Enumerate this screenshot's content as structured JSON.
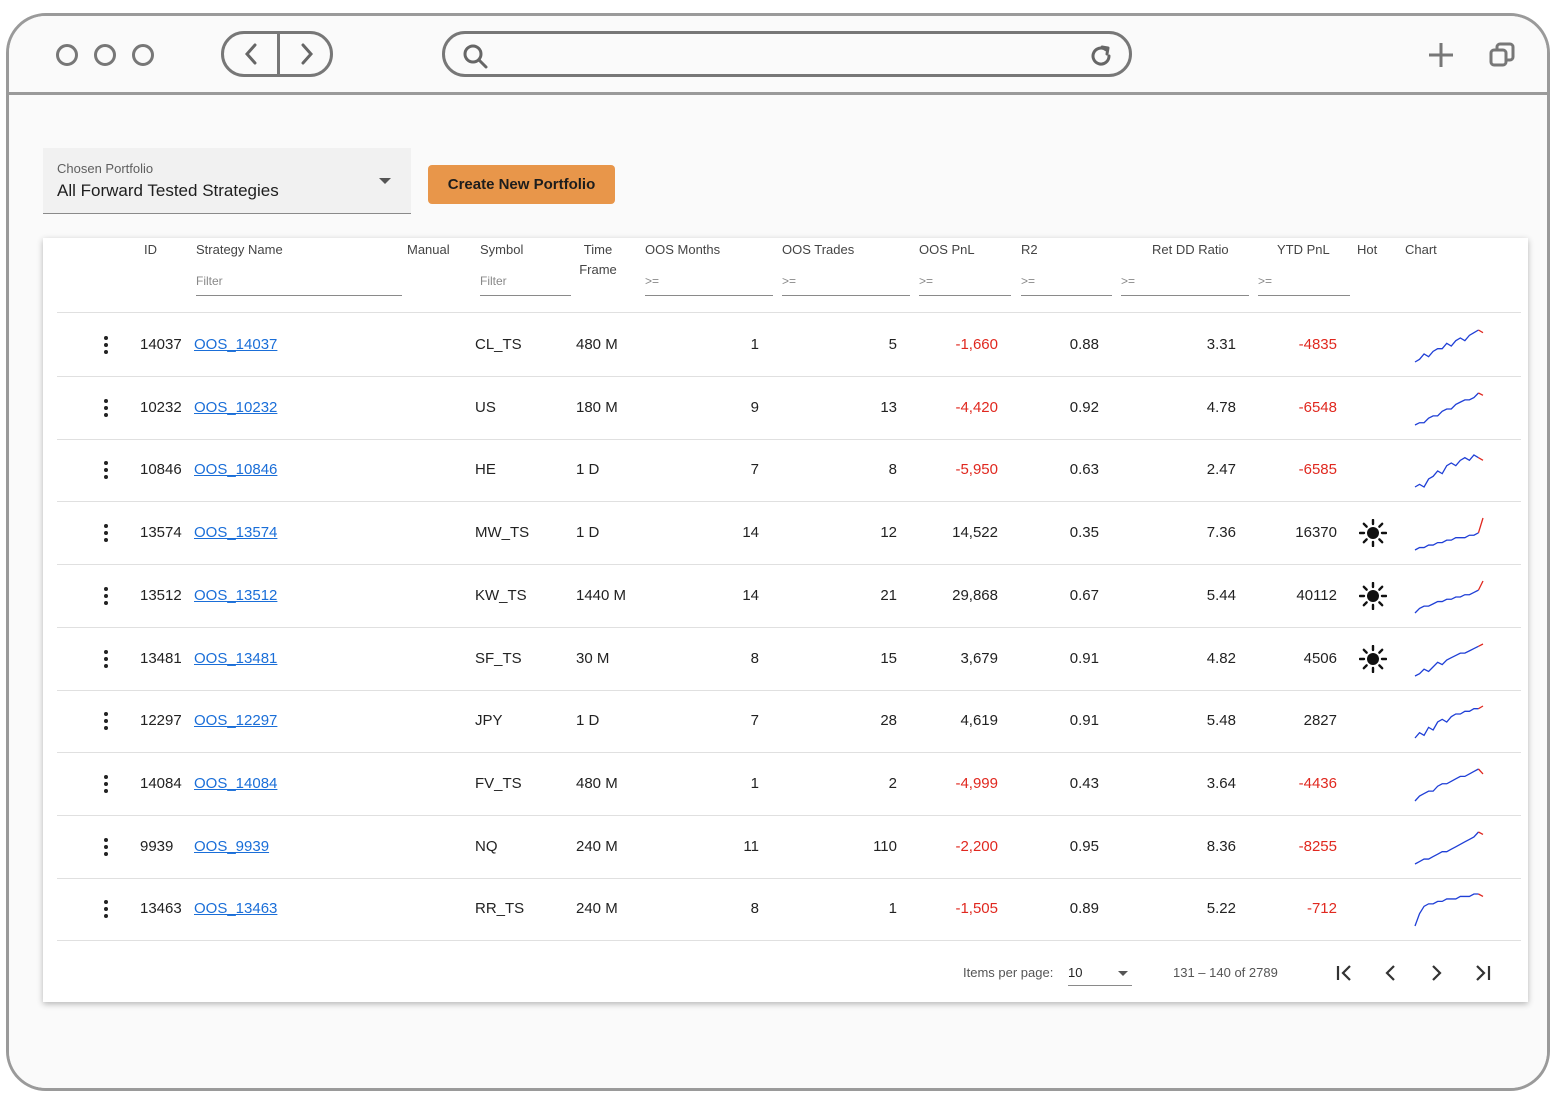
{
  "portfolio": {
    "label": "Chosen Portfolio",
    "value": "All Forward Tested Strategies"
  },
  "create_button": "Create New Portfolio",
  "table": {
    "columns": {
      "id": "ID",
      "strategy_name": "Strategy Name",
      "manual": "Manual",
      "symbol": "Symbol",
      "time_frame_1": "Time",
      "time_frame_2": "Frame",
      "oos_months": "OOS Months",
      "oos_trades": "OOS Trades",
      "oos_pnl": "OOS PnL",
      "r2": "R2",
      "ret_dd": "Ret DD Ratio",
      "ytd_pnl": "YTD PnL",
      "hot": "Hot",
      "chart": "Chart"
    },
    "filters": {
      "text_placeholder": "Filter",
      "numeric_placeholder": ">="
    },
    "rows": [
      {
        "id": "14037",
        "name": "OOS_14037",
        "symbol": "CL_TS",
        "tf": "480 M",
        "months": "1",
        "trades": "5",
        "oos_pnl": "-1,660",
        "r2": "0.88",
        "retdd": "3.31",
        "ytd": "-4835",
        "hot": false,
        "spark": [
          2,
          3,
          5,
          4,
          6,
          7,
          7,
          9,
          8,
          10,
          11,
          10,
          12,
          13,
          14,
          13
        ]
      },
      {
        "id": "10232",
        "name": "OOS_10232",
        "symbol": "US",
        "tf": "180 M",
        "months": "9",
        "trades": "13",
        "oos_pnl": "-4,420",
        "r2": "0.92",
        "retdd": "4.78",
        "ytd": "-6548",
        "hot": false,
        "spark": [
          1,
          2,
          2,
          4,
          5,
          5,
          7,
          8,
          8,
          10,
          11,
          12,
          12,
          13,
          15,
          14
        ]
      },
      {
        "id": "10846",
        "name": "OOS_10846",
        "symbol": "HE",
        "tf": "1 D",
        "months": "7",
        "trades": "8",
        "oos_pnl": "-5,950",
        "r2": "0.63",
        "retdd": "2.47",
        "ytd": "-6585",
        "hot": false,
        "spark": [
          2,
          3,
          2,
          5,
          6,
          8,
          7,
          10,
          11,
          10,
          12,
          13,
          12,
          14,
          13,
          12
        ]
      },
      {
        "id": "13574",
        "name": "OOS_13574",
        "symbol": "MW_TS",
        "tf": "1 D",
        "months": "14",
        "trades": "12",
        "oos_pnl": "14,522",
        "r2": "0.35",
        "retdd": "7.36",
        "ytd": "16370",
        "hot": true,
        "spark": [
          2,
          3,
          3,
          4,
          4,
          5,
          5,
          6,
          6,
          7,
          7,
          7,
          8,
          8,
          9,
          15
        ]
      },
      {
        "id": "13512",
        "name": "OOS_13512",
        "symbol": "KW_TS",
        "tf": "1440 M",
        "months": "14",
        "trades": "21",
        "oos_pnl": "29,868",
        "r2": "0.67",
        "retdd": "5.44",
        "ytd": "40112",
        "hot": true,
        "spark": [
          1,
          3,
          4,
          4,
          5,
          6,
          6,
          7,
          7,
          8,
          8,
          9,
          9,
          10,
          11,
          15
        ]
      },
      {
        "id": "13481",
        "name": "OOS_13481",
        "symbol": "SF_TS",
        "tf": "30 M",
        "months": "8",
        "trades": "15",
        "oos_pnl": "3,679",
        "r2": "0.91",
        "retdd": "4.82",
        "ytd": "4506",
        "hot": true,
        "spark": [
          1,
          2,
          4,
          3,
          5,
          7,
          6,
          8,
          9,
          10,
          11,
          11,
          12,
          13,
          14,
          15
        ]
      },
      {
        "id": "12297",
        "name": "OOS_12297",
        "symbol": "JPY",
        "tf": "1 D",
        "months": "7",
        "trades": "28",
        "oos_pnl": "4,619",
        "r2": "0.91",
        "retdd": "5.48",
        "ytd": "2827",
        "hot": false,
        "spark": [
          1,
          3,
          2,
          5,
          4,
          7,
          8,
          7,
          9,
          10,
          10,
          11,
          11,
          12,
          12,
          13
        ]
      },
      {
        "id": "14084",
        "name": "OOS_14084",
        "symbol": "FV_TS",
        "tf": "480 M",
        "months": "1",
        "trades": "2",
        "oos_pnl": "-4,999",
        "r2": "0.43",
        "retdd": "3.64",
        "ytd": "-4436",
        "hot": false,
        "spark": [
          1,
          3,
          4,
          5,
          5,
          7,
          8,
          8,
          9,
          10,
          11,
          11,
          12,
          13,
          14,
          12
        ]
      },
      {
        "id": "9939",
        "name": "OOS_9939",
        "symbol": "NQ",
        "tf": "240 M",
        "months": "11",
        "trades": "110",
        "oos_pnl": "-2,200",
        "r2": "0.95",
        "retdd": "8.36",
        "ytd": "-8255",
        "hot": false,
        "spark": [
          1,
          2,
          3,
          3,
          4,
          5,
          6,
          6,
          7,
          8,
          9,
          10,
          11,
          12,
          14,
          13
        ]
      },
      {
        "id": "13463",
        "name": "OOS_13463",
        "symbol": "RR_TS",
        "tf": "240 M",
        "months": "8",
        "trades": "1",
        "oos_pnl": "-1,505",
        "r2": "0.89",
        "retdd": "5.22",
        "ytd": "-712",
        "hot": false,
        "spark": [
          0,
          5,
          8,
          9,
          9,
          10,
          10,
          11,
          11,
          11,
          12,
          12,
          12,
          13,
          13,
          12
        ]
      }
    ]
  },
  "paginator": {
    "items_label": "Items per page:",
    "page_size": "10",
    "range": "131 – 140 of 2789"
  },
  "colors": {
    "accent_button": "#e8964a",
    "negative": "#e0281f",
    "link": "#1a6ed8",
    "spark_line": "#1f3fd6",
    "spark_tail": "#e0281f"
  },
  "icons": {
    "hot": "sun-icon",
    "menu": "kebab-menu-icon"
  }
}
